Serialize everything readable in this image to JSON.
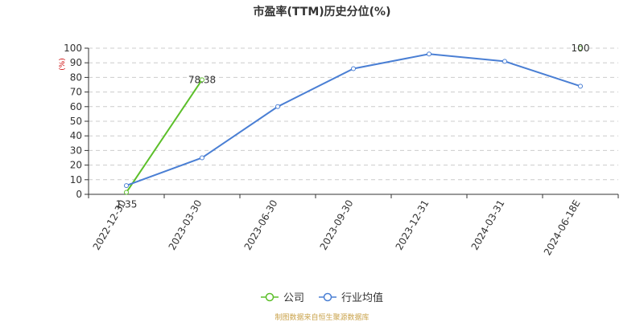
{
  "chart_data": {
    "type": "line",
    "title": "市盈率(TTM)历史分位(%)",
    "ylabel": "(%)",
    "xlabel": "",
    "ylim": [
      0,
      100
    ],
    "yticks": [
      0,
      10,
      20,
      30,
      40,
      50,
      60,
      70,
      80,
      90,
      100
    ],
    "grid": true,
    "legend_position": "bottom",
    "categories": [
      "2022-12-30",
      "2023-03-30",
      "2023-06-30",
      "2023-09-30",
      "2023-12-31",
      "2024-03-31",
      "2024-06-18E"
    ],
    "series": [
      {
        "name": "公司",
        "color": "#5cbf2a",
        "values": [
          1.35,
          78.38,
          null,
          null,
          null,
          null,
          100
        ],
        "data_labels": [
          {
            "index": 0,
            "text": "1.35"
          },
          {
            "index": 1,
            "text": "78.38"
          },
          {
            "index": 6,
            "text": "100"
          }
        ]
      },
      {
        "name": "行业均值",
        "color": "#4a7fd4",
        "values": [
          6,
          25,
          60,
          86,
          96,
          91,
          74
        ]
      }
    ]
  },
  "footer": "制图数据来自恒生聚源数据库"
}
